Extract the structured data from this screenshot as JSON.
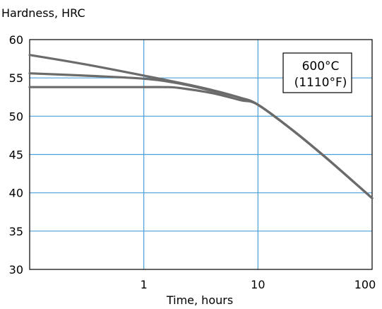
{
  "chart_data": {
    "type": "line",
    "xlabel": "Time, hours",
    "ylabel": "Hardness, HRC",
    "xscale": "log",
    "xlim": [
      0.1,
      100
    ],
    "ylim": [
      30,
      60
    ],
    "x_ticks": [
      1,
      10,
      100
    ],
    "x_tick_labels": [
      "1",
      "10",
      "100"
    ],
    "y_ticks": [
      30,
      35,
      40,
      45,
      50,
      55,
      60
    ],
    "y_tick_labels": [
      "30",
      "35",
      "40",
      "45",
      "50",
      "55",
      "60"
    ],
    "grid": true,
    "annotation": {
      "line1": "600°C",
      "line2": "(1110°F)",
      "position": "top-right"
    },
    "series": [
      {
        "x": [
          0.1,
          0.3,
          1,
          2,
          4,
          7,
          10,
          20,
          40,
          100
        ],
        "y": [
          58,
          56.8,
          55.3,
          54.4,
          53.4,
          52.4,
          51.5,
          48.2,
          44.5,
          39.3
        ]
      },
      {
        "x": [
          0.1,
          0.3,
          1,
          2,
          4,
          7,
          10,
          20,
          40,
          100
        ],
        "y": [
          55.6,
          55.3,
          54.9,
          54.3,
          53.3,
          52.4,
          51.5,
          48.2,
          44.5,
          39.3
        ]
      },
      {
        "x": [
          0.1,
          0.3,
          1,
          1.5,
          2,
          4,
          7,
          10,
          20,
          40,
          100
        ],
        "y": [
          53.8,
          53.8,
          53.8,
          53.8,
          53.7,
          53.0,
          52.1,
          51.5,
          48.2,
          44.5,
          39.3
        ]
      }
    ],
    "colors": {
      "grid": "#4a9fd8",
      "line": "#6b6b6b",
      "axis": "#000000"
    }
  }
}
